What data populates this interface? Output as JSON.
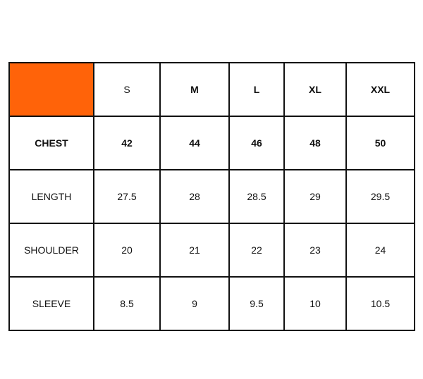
{
  "size_chart": {
    "corner_color": "#FF6309",
    "sizes": [
      "S",
      "M",
      "L",
      "XL",
      "XXL"
    ],
    "rows": [
      {
        "label": "CHEST",
        "values": [
          "42",
          "44",
          "46",
          "48",
          "50"
        ],
        "bold": true
      },
      {
        "label": "LENGTH",
        "values": [
          "27.5",
          "28",
          "28.5",
          "29",
          "29.5"
        ],
        "bold": false
      },
      {
        "label": "SHOULDER",
        "values": [
          "20",
          "21",
          "22",
          "23",
          "24"
        ],
        "bold": false
      },
      {
        "label": "SLEEVE",
        "values": [
          "8.5",
          "9",
          "9.5",
          "10",
          "10.5"
        ],
        "bold": false
      }
    ]
  }
}
